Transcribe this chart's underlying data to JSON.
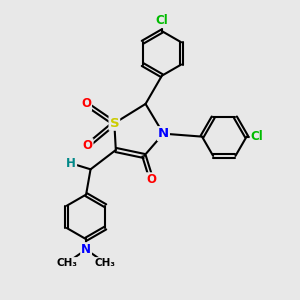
{
  "bg_color": "#e8e8e8",
  "bond_color": "#000000",
  "bond_width": 1.5,
  "atom_colors": {
    "S": "#cccc00",
    "N": "#0000ff",
    "O": "#ff0000",
    "Cl": "#00bb00",
    "H": "#008888",
    "C": "#000000"
  },
  "font_size_atom": 8.5,
  "font_size_small": 7.5,
  "xlim": [
    0,
    10
  ],
  "ylim": [
    0,
    10
  ]
}
